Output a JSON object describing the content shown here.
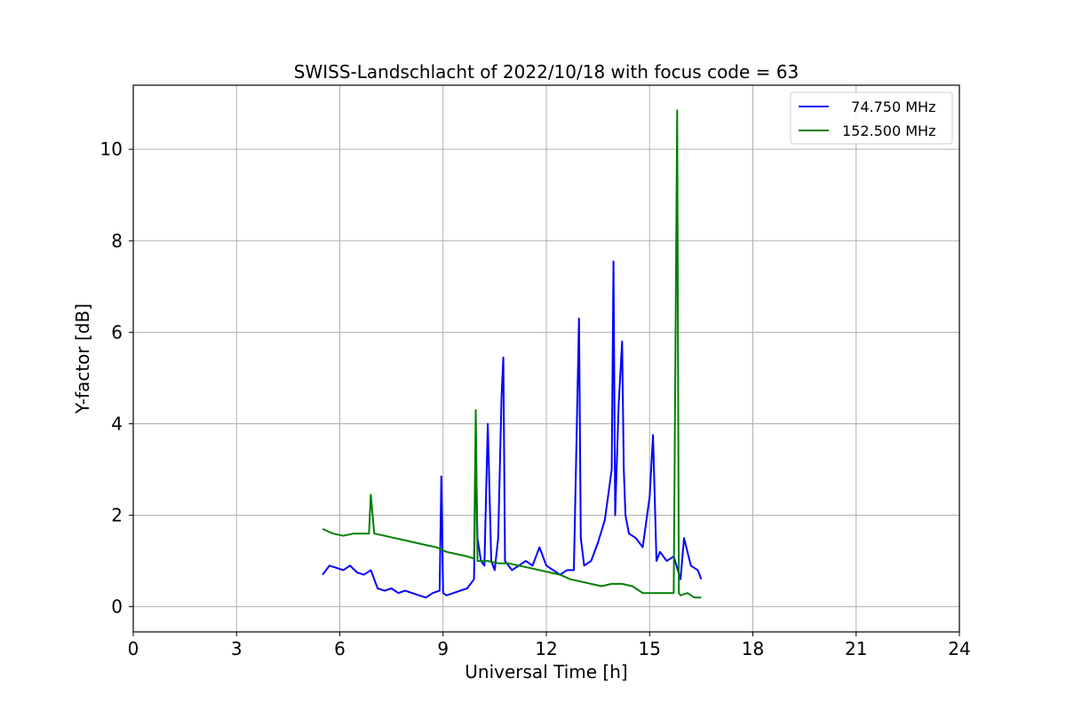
{
  "chart_data": {
    "type": "line",
    "title": "SWISS-Landschlacht of 2022/10/18 with focus code = 63",
    "xlabel": "Universal Time [h]",
    "ylabel": "Y-factor [dB]",
    "xlim": [
      0,
      24
    ],
    "ylim": [
      -0.55,
      11.4
    ],
    "xticks": [
      0,
      3,
      6,
      9,
      12,
      15,
      18,
      21,
      24
    ],
    "yticks": [
      0,
      2,
      4,
      6,
      8,
      10
    ],
    "grid": true,
    "legend_position": "top-right",
    "series": [
      {
        "name": "  74.750 MHz",
        "color": "#0000ff",
        "x": [
          5.5,
          5.7,
          5.9,
          6.1,
          6.3,
          6.5,
          6.7,
          6.9,
          7.0,
          7.1,
          7.3,
          7.5,
          7.7,
          7.9,
          8.1,
          8.3,
          8.5,
          8.7,
          8.9,
          8.95,
          9.0,
          9.1,
          9.3,
          9.5,
          9.7,
          9.9,
          9.95,
          10.0,
          10.1,
          10.2,
          10.3,
          10.4,
          10.5,
          10.6,
          10.7,
          10.75,
          10.8,
          11.0,
          11.2,
          11.4,
          11.6,
          11.8,
          12.0,
          12.2,
          12.4,
          12.6,
          12.8,
          12.95,
          13.0,
          13.1,
          13.3,
          13.5,
          13.7,
          13.9,
          13.95,
          14.0,
          14.1,
          14.2,
          14.25,
          14.3,
          14.4,
          14.6,
          14.8,
          15.0,
          15.1,
          15.2,
          15.3,
          15.5,
          15.7,
          15.9,
          16.0,
          16.2,
          16.4,
          16.5
        ],
        "y": [
          0.7,
          0.9,
          0.85,
          0.8,
          0.9,
          0.75,
          0.7,
          0.8,
          0.6,
          0.4,
          0.35,
          0.4,
          0.3,
          0.35,
          0.3,
          0.25,
          0.2,
          0.3,
          0.35,
          2.85,
          0.3,
          0.25,
          0.3,
          0.35,
          0.4,
          0.6,
          3.5,
          1.5,
          1.0,
          0.9,
          4.0,
          1.0,
          0.8,
          1.5,
          4.6,
          5.45,
          1.0,
          0.8,
          0.9,
          1.0,
          0.9,
          1.3,
          0.9,
          0.8,
          0.7,
          0.8,
          0.8,
          6.3,
          1.5,
          0.9,
          1.0,
          1.4,
          1.9,
          3.0,
          7.55,
          2.0,
          4.4,
          5.8,
          3.0,
          2.0,
          1.6,
          1.5,
          1.3,
          2.4,
          3.75,
          1.0,
          1.2,
          1.0,
          1.1,
          0.6,
          1.5,
          0.9,
          0.8,
          0.6
        ]
      },
      {
        "name": "152.500 MHz",
        "color": "#008000",
        "x": [
          5.5,
          5.8,
          6.1,
          6.4,
          6.7,
          6.85,
          6.9,
          7.0,
          7.3,
          7.6,
          7.9,
          8.2,
          8.5,
          8.8,
          9.1,
          9.4,
          9.7,
          9.9,
          9.95,
          10.0,
          10.3,
          10.6,
          10.9,
          11.2,
          11.5,
          11.8,
          12.1,
          12.4,
          12.7,
          13.0,
          13.3,
          13.6,
          13.9,
          14.2,
          14.5,
          14.8,
          15.1,
          15.4,
          15.7,
          15.8,
          15.85,
          15.9,
          16.1,
          16.3,
          16.5
        ],
        "y": [
          1.7,
          1.6,
          1.55,
          1.6,
          1.6,
          1.6,
          2.45,
          1.6,
          1.55,
          1.5,
          1.45,
          1.4,
          1.35,
          1.3,
          1.2,
          1.15,
          1.1,
          1.05,
          4.3,
          1.0,
          1.0,
          0.95,
          0.95,
          0.9,
          0.85,
          0.8,
          0.75,
          0.7,
          0.6,
          0.55,
          0.5,
          0.45,
          0.5,
          0.5,
          0.45,
          0.3,
          0.3,
          0.3,
          0.3,
          10.85,
          0.3,
          0.25,
          0.3,
          0.2,
          0.2
        ]
      }
    ]
  }
}
